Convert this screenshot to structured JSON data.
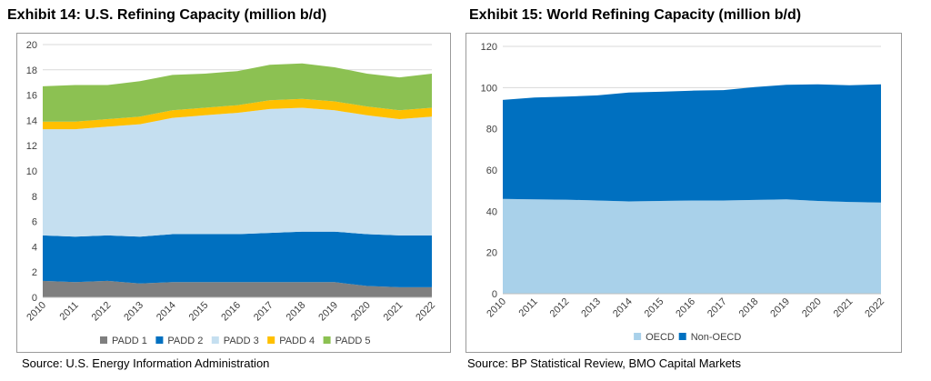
{
  "left": {
    "title": "Exhibit 14: U.S. Refining Capacity (million b/d)",
    "source": "Source: U.S. Energy Information Administration"
  },
  "right": {
    "title": "Exhibit 15: World Refining Capacity (million b/d)",
    "source": "Source: BP Statistical Review, BMO Capital Markets"
  },
  "chart_data": [
    {
      "type": "area",
      "stacked": true,
      "title": "Exhibit 14: U.S. Refining Capacity (million b/d)",
      "x": [
        2010,
        2011,
        2012,
        2013,
        2014,
        2015,
        2016,
        2017,
        2018,
        2019,
        2020,
        2021,
        2022
      ],
      "x_tick_labels": [
        "2010",
        "2011",
        "2012",
        "2013",
        "2014",
        "2015",
        "2016",
        "2017",
        "2018",
        "2019",
        "2020",
        "2021",
        "2022"
      ],
      "ylim": [
        0,
        20
      ],
      "y_ticks": [
        0,
        2,
        4,
        6,
        8,
        10,
        12,
        14,
        16,
        18,
        20
      ],
      "grid": true,
      "legend_position": "bottom",
      "series": [
        {
          "name": "PADD 1",
          "color": "#7f7f7f",
          "values": [
            1.3,
            1.2,
            1.3,
            1.1,
            1.2,
            1.2,
            1.2,
            1.2,
            1.2,
            1.2,
            0.9,
            0.8,
            0.8
          ]
        },
        {
          "name": "PADD 2",
          "color": "#0070c0",
          "values": [
            3.6,
            3.6,
            3.6,
            3.7,
            3.8,
            3.8,
            3.8,
            3.9,
            4.0,
            4.0,
            4.1,
            4.1,
            4.1
          ]
        },
        {
          "name": "PADD 3",
          "color": "#c5dff0",
          "values": [
            8.4,
            8.5,
            8.6,
            8.9,
            9.2,
            9.4,
            9.6,
            9.8,
            9.8,
            9.6,
            9.4,
            9.2,
            9.4
          ]
        },
        {
          "name": "PADD 4",
          "color": "#ffc000",
          "values": [
            0.6,
            0.6,
            0.6,
            0.6,
            0.6,
            0.6,
            0.6,
            0.7,
            0.7,
            0.7,
            0.7,
            0.7,
            0.7
          ]
        },
        {
          "name": "PADD 5",
          "color": "#8cc152",
          "values": [
            2.8,
            2.9,
            2.7,
            2.8,
            2.8,
            2.7,
            2.7,
            2.8,
            2.8,
            2.7,
            2.6,
            2.6,
            2.7
          ]
        }
      ]
    },
    {
      "type": "area",
      "stacked": true,
      "title": "Exhibit 15: World Refining Capacity (million b/d)",
      "x": [
        2010,
        2011,
        2012,
        2013,
        2014,
        2015,
        2016,
        2017,
        2018,
        2019,
        2020,
        2021,
        2022
      ],
      "x_tick_labels": [
        "2010",
        "2011",
        "2012",
        "2013",
        "2014",
        "2015",
        "2016",
        "2017",
        "2018",
        "2019",
        "2020",
        "2021",
        "2022"
      ],
      "ylim": [
        0,
        120
      ],
      "y_ticks": [
        0,
        20,
        40,
        60,
        80,
        100,
        120
      ],
      "grid": true,
      "legend_position": "bottom",
      "series": [
        {
          "name": "OECD",
          "color": "#a9d1ea",
          "values": [
            46.0,
            45.8,
            45.6,
            45.2,
            44.8,
            45.0,
            45.2,
            45.2,
            45.5,
            45.8,
            45.0,
            44.5,
            44.2
          ]
        },
        {
          "name": "Non-OECD",
          "color": "#0070c0",
          "values": [
            48.0,
            49.4,
            50.0,
            51.0,
            52.8,
            53.0,
            53.3,
            53.6,
            54.8,
            55.6,
            56.6,
            56.6,
            57.4
          ]
        }
      ]
    }
  ]
}
